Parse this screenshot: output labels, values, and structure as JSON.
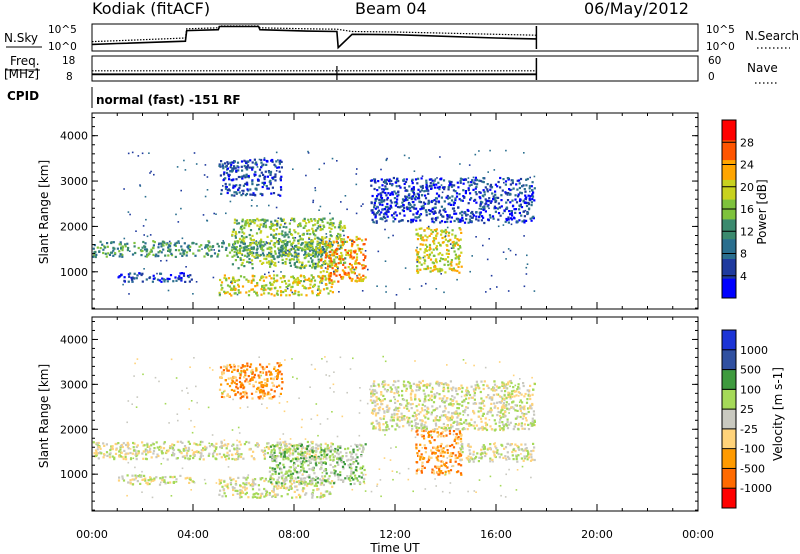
{
  "header": {
    "title": "Kodiak (fitACF)",
    "beam": "Beam 04",
    "date": "06/May/2012"
  },
  "side_labels": {
    "nsky": "N.Sky",
    "freq_line1": "Freq.",
    "freq_line2": "[MHz]",
    "cpid": "CPID",
    "nsearch": "N.Search",
    "nave": "Nave"
  },
  "cpid_text": "normal (fast) -151 RF",
  "colors": {
    "power_scale": [
      "#0000ff",
      "#1f3a9e",
      "#2a6e8e",
      "#3b8a6e",
      "#7ec23c",
      "#c8d21e",
      "#ffa500",
      "#ff5500",
      "#ff0000"
    ],
    "velocity_scale": [
      "#ff0000",
      "#ff6a00",
      "#ff9a00",
      "#ffd37a",
      "#c9c9c0",
      "#a5d958",
      "#3e9a3e",
      "#3050a0",
      "#1c34d6"
    ],
    "ground_scatter": "#bdbdb5"
  },
  "chart_data": [
    {
      "type": "line",
      "name": "noise-panel",
      "y_left_label": "N.Sky",
      "y_left_ticks": [
        "10^5",
        "10^0"
      ],
      "y_right_label": "N.Search",
      "y_right_ticks": [
        "10^5",
        "10^0"
      ],
      "xlim_hours": [
        0,
        24
      ],
      "data_end_hour": 17.6,
      "series": [
        {
          "style": "solid",
          "x": [
            0,
            1,
            3.7,
            3.75,
            5,
            5.05,
            6.6,
            6.65,
            8.5,
            9.7,
            9.75,
            10.3,
            12,
            16,
            17.6
          ],
          "y_log": [
            1.0,
            1.2,
            1.7,
            4.0,
            4.2,
            4.9,
            4.9,
            4.2,
            3.9,
            3.8,
            0.3,
            3.2,
            3.1,
            2.4,
            2.2
          ]
        },
        {
          "style": "dotted",
          "x": [
            0,
            1,
            3.7,
            3.75,
            5,
            5.05,
            6.6,
            6.65,
            8.5,
            9.7,
            10.3,
            12,
            16,
            17.6
          ],
          "y_log": [
            1.6,
            1.8,
            2.4,
            4.4,
            4.6,
            5.0,
            5.0,
            4.6,
            4.4,
            4.3,
            3.8,
            3.7,
            3.2,
            3.0
          ]
        }
      ]
    },
    {
      "type": "line",
      "name": "frequency-panel",
      "y_left_label": "Freq. [MHz]",
      "y_left_ticks": [
        "18",
        "8"
      ],
      "y_right_label": "Nave",
      "y_right_ticks": [
        "60",
        "0"
      ],
      "xlim_hours": [
        0,
        24
      ],
      "data_end_hour": 17.6,
      "series": [
        {
          "style": "solid",
          "name": "freq",
          "x": [
            0,
            17.6
          ],
          "y": [
            10.5,
            10.5
          ]
        },
        {
          "style": "dotted",
          "name": "nave",
          "x": [
            0,
            17.6
          ],
          "y": [
            12.0,
            12.0
          ]
        }
      ]
    },
    {
      "type": "heatmap",
      "name": "power-panel",
      "ylabel": "Slant Range [km]",
      "yticks": [
        1000,
        2000,
        3000,
        4000
      ],
      "ylim_km": [
        180,
        4500
      ],
      "xlim_hours": [
        0,
        24
      ],
      "colorbar_label": "Power [dB]",
      "colorbar_ticks": [
        "28",
        "24",
        "20",
        "16",
        "12",
        "8",
        "4"
      ],
      "scatter_bands": [
        {
          "start": 0.0,
          "end": 9.5,
          "range": [
            1350,
            1700
          ],
          "value_level": 3
        },
        {
          "start": 1.0,
          "end": 4.0,
          "range": [
            800,
            1000
          ],
          "value_level": 1
        },
        {
          "start": 5.0,
          "end": 9.5,
          "range": [
            500,
            950
          ],
          "value_level": 5
        },
        {
          "start": 5.5,
          "end": 10.0,
          "range": [
            1100,
            2200
          ],
          "value_level": 4
        },
        {
          "start": 9.0,
          "end": 10.8,
          "range": [
            800,
            1800
          ],
          "value_level": 6
        },
        {
          "start": 12.8,
          "end": 14.6,
          "range": [
            1000,
            2000
          ],
          "value_level": 5
        },
        {
          "start": 11.0,
          "end": 17.5,
          "range": [
            2100,
            3100
          ],
          "value_level": 1
        },
        {
          "start": 5.0,
          "end": 7.5,
          "range": [
            2700,
            3500
          ],
          "value_level": 1
        }
      ]
    },
    {
      "type": "heatmap",
      "name": "velocity-panel",
      "ylabel": "Slant Range [km]",
      "yticks": [
        1000,
        2000,
        3000,
        4000
      ],
      "ylim_km": [
        180,
        4500
      ],
      "xlim_hours": [
        0,
        24
      ],
      "xlabel": "Time UT",
      "xticks": [
        "00:00",
        "04:00",
        "08:00",
        "12:00",
        "16:00",
        "20:00",
        "00:00"
      ],
      "colorbar_label": "Velocity [m s-1]",
      "colorbar_ticks": [
        "1000",
        "500",
        "100",
        "25",
        "-25",
        "-100",
        "-500",
        "-1000"
      ],
      "scatter_bands": [
        {
          "start": 0.0,
          "end": 9.5,
          "range": [
            1350,
            1750
          ],
          "value_level": 4
        },
        {
          "start": 1.0,
          "end": 4.0,
          "range": [
            780,
            1000
          ],
          "value_level": 4
        },
        {
          "start": 5.0,
          "end": 9.5,
          "range": [
            500,
            950
          ],
          "value_level": 4
        },
        {
          "start": 7.0,
          "end": 10.8,
          "range": [
            800,
            1700
          ],
          "value_level": 5
        },
        {
          "start": 12.8,
          "end": 14.6,
          "range": [
            1000,
            2000
          ],
          "value_level": 2
        },
        {
          "start": 11.0,
          "end": 17.5,
          "range": [
            2000,
            3100
          ],
          "value_level": 4
        },
        {
          "start": 5.0,
          "end": 7.5,
          "range": [
            2700,
            3500
          ],
          "value_level": 2
        },
        {
          "start": 14.5,
          "end": 17.5,
          "range": [
            1300,
            1700
          ],
          "value_level": 4
        }
      ]
    }
  ]
}
